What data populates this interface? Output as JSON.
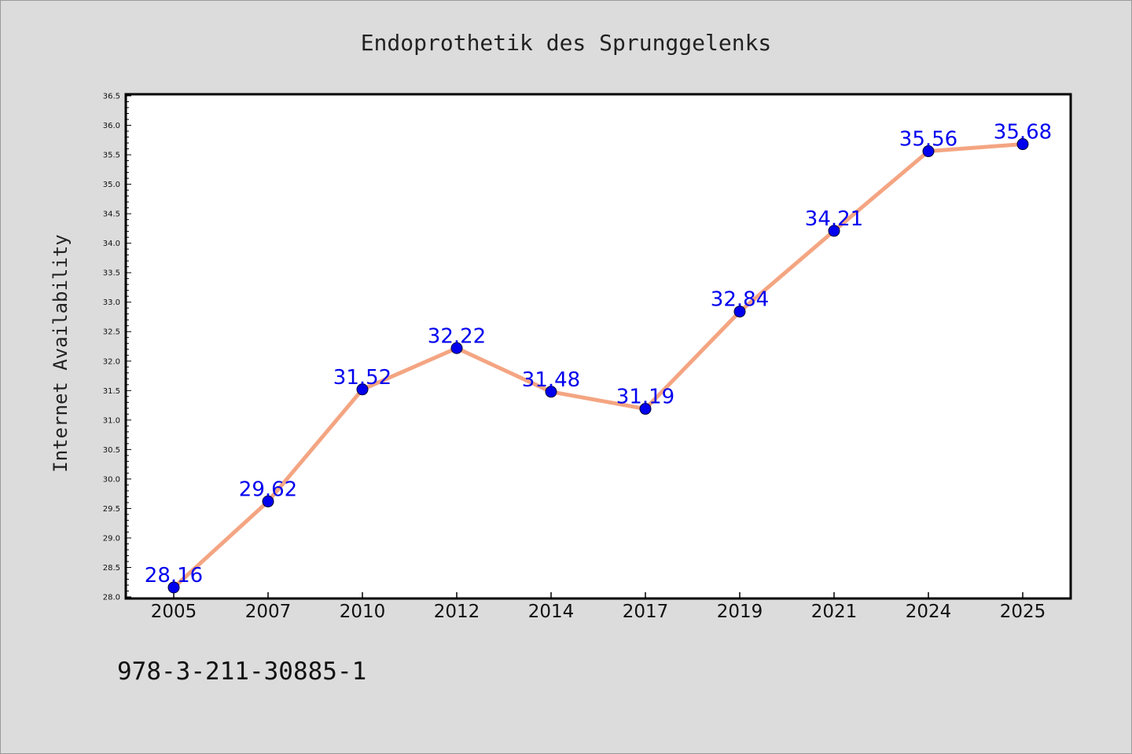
{
  "chart_data": {
    "type": "line",
    "title": "Endoprothetik des Sprunggelenks",
    "xlabel": "",
    "ylabel": "Internet Availability",
    "categories": [
      "2005",
      "2007",
      "2010",
      "2012",
      "2014",
      "2017",
      "2019",
      "2021",
      "2024",
      "2025"
    ],
    "values": [
      28.16,
      29.62,
      31.52,
      32.22,
      31.48,
      31.19,
      32.84,
      34.21,
      35.56,
      35.68
    ],
    "data_labels": [
      "28.16",
      "29.62",
      "31.52",
      "32.22",
      "31.48",
      "31.19",
      "32.84",
      "34.21",
      "35.56",
      "35.68"
    ],
    "ylim": [
      28.0,
      36.5
    ],
    "yticks": [
      "28.0",
      "28.5",
      "29.0",
      "29.5",
      "30.0",
      "30.5",
      "31.0",
      "31.5",
      "32.0",
      "32.5",
      "33.0",
      "33.5",
      "34.0",
      "34.5",
      "35.0",
      "35.5",
      "36.0",
      "36.5"
    ],
    "grid": false,
    "legend": "none",
    "colors": {
      "line": "#f4a582",
      "marker": "#0000ee",
      "labels": "#0000ee",
      "background": "#dcdcdc",
      "plot_area": "#ffffff"
    }
  },
  "footer": {
    "text": "978-3-211-30885-1"
  }
}
